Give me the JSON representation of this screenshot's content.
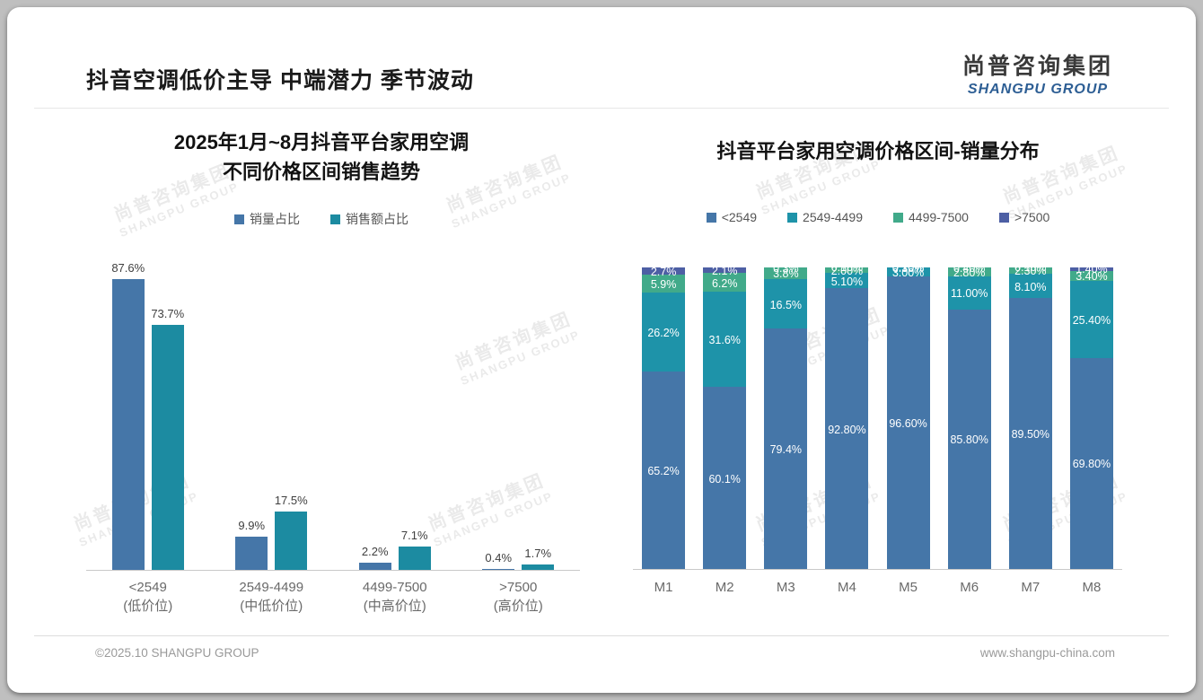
{
  "slide": {
    "header_title": "抖音空调低价主导 中端潜力 季节波动",
    "logo": {
      "cn": "尚普咨询集团",
      "en": "SHANGPU GROUP"
    },
    "watermark": {
      "line1": "尚普咨询集团",
      "line2": "SHANGPU GROUP"
    },
    "footer": {
      "left": "©2025.10 SHANGPU GROUP",
      "right": "www.shangpu-china.com"
    }
  },
  "chart_data": [
    {
      "type": "bar",
      "title_lines": [
        "2025年1月~8月抖音平台家用空调",
        "不同价格区间销售趋势"
      ],
      "title": "2025年1月~8月抖音平台家用空调不同价格区间销售趋势",
      "categories": [
        "<2549",
        "2549-4499",
        "4499-7500",
        ">7500"
      ],
      "category_sublabels": [
        "(低价位)",
        "(中低价位)",
        "(中高价位)",
        "(高价位)"
      ],
      "series": [
        {
          "name": "销量占比",
          "color": "#4576a8",
          "values": [
            87.6,
            9.9,
            2.2,
            0.4
          ],
          "labels": [
            "87.6%",
            "9.9%",
            "2.2%",
            "0.4%"
          ]
        },
        {
          "name": "销售额占比",
          "color": "#1c8ba1",
          "values": [
            73.7,
            17.5,
            7.1,
            1.7
          ],
          "labels": [
            "73.7%",
            "17.5%",
            "7.1%",
            "1.7%"
          ]
        }
      ],
      "xlabel": "",
      "ylabel": "",
      "ylim": [
        0,
        100
      ],
      "grid": false,
      "legend_position": "top"
    },
    {
      "type": "stacked_bar",
      "title": "抖音平台家用空调价格区间-销量分布",
      "categories": [
        "M1",
        "M2",
        "M3",
        "M4",
        "M5",
        "M6",
        "M7",
        "M8"
      ],
      "stack_total": 100,
      "series": [
        {
          "name": "<2549",
          "color": "#4576a8",
          "values": [
            65.2,
            60.1,
            79.4,
            92.8,
            96.6,
            85.8,
            89.5,
            69.8
          ],
          "labels": [
            "65.2%",
            "60.1%",
            "79.4%",
            "92.80%",
            "96.60%",
            "85.80%",
            "89.50%",
            "69.80%"
          ]
        },
        {
          "name": "2549-4499",
          "color": "#1e93a9",
          "values": [
            26.2,
            31.6,
            16.5,
            5.1,
            3.0,
            11.0,
            8.1,
            25.4
          ],
          "labels": [
            "26.2%",
            "31.6%",
            "16.5%",
            "5.10%",
            "3.00%",
            "11.00%",
            "8.10%",
            "25.40%"
          ]
        },
        {
          "name": "4499-7500",
          "color": "#41aa8a",
          "values": [
            5.9,
            6.2,
            3.8,
            2.0,
            0.3,
            2.8,
            2.3,
            3.4
          ],
          "labels": [
            "5.9%",
            "6.2%",
            "3.8%",
            "2.00%",
            "0.30%",
            "2.80%",
            "2.30%",
            "3.40%"
          ]
        },
        {
          "name": ">7500",
          "color": "#4d5fa4",
          "values": [
            2.7,
            2.1,
            0.3,
            0.1,
            0.1,
            0.4,
            0.1,
            1.4
          ],
          "labels": [
            "2.7%",
            "2.1%",
            "0.3%",
            "0.10%",
            "0.10%",
            "0.40%",
            "0.10%",
            "1.40%"
          ]
        }
      ],
      "xlabel": "",
      "ylabel": "",
      "ylim": [
        0,
        100
      ],
      "grid": false,
      "legend_position": "top"
    }
  ]
}
